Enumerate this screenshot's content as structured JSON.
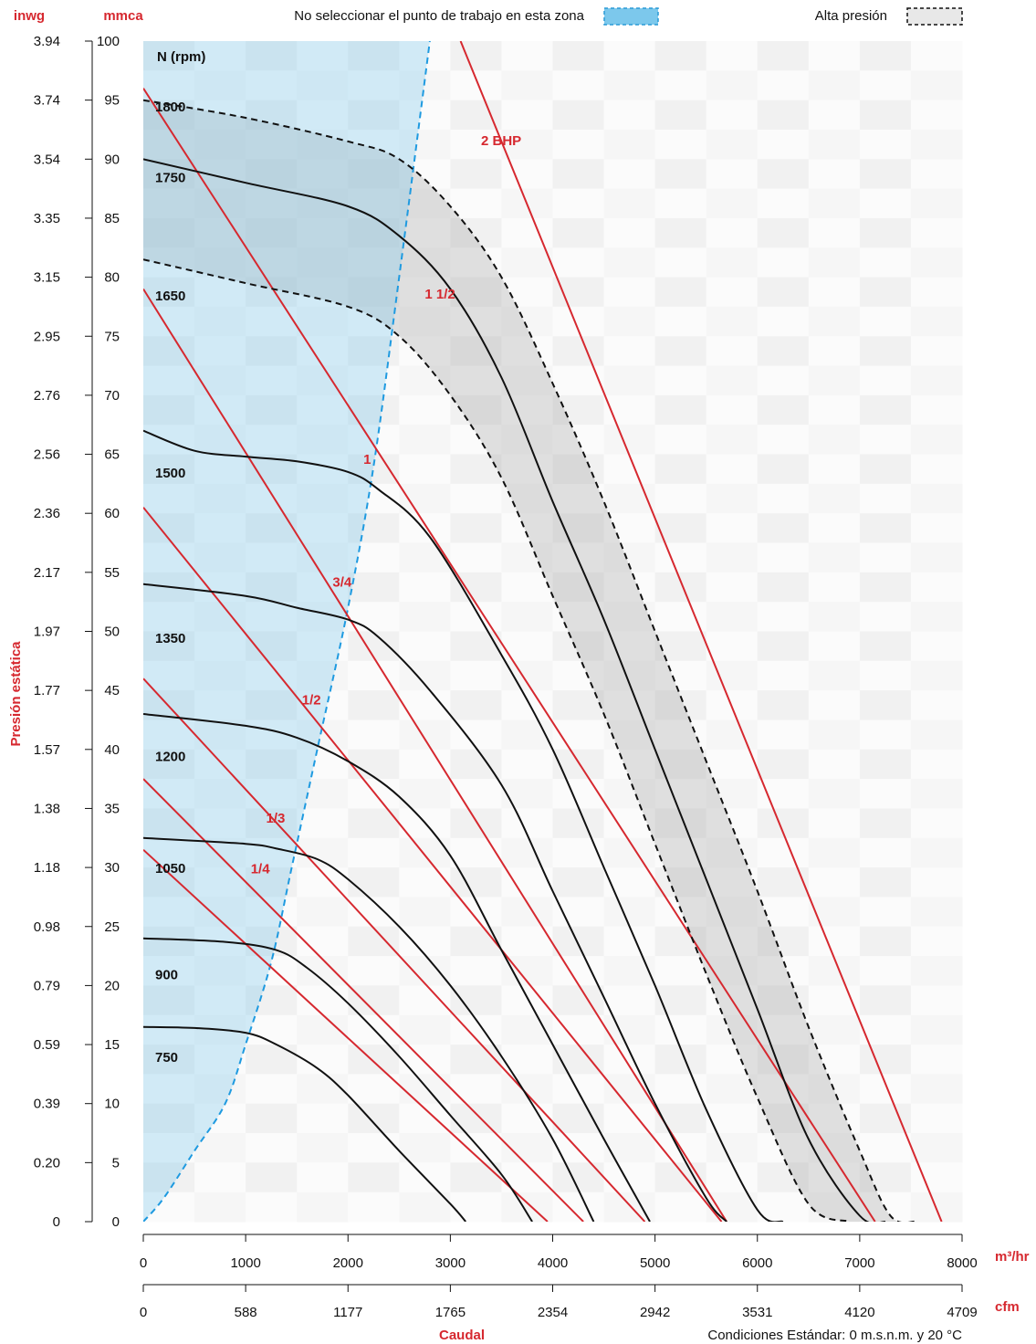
{
  "chart_data": {
    "type": "line",
    "xlabel": "Caudal",
    "ylabel": "Presión estática",
    "x_unit": "m³/hr",
    "x2_unit": "cfm",
    "y_unit": "mmca",
    "y2_unit": "inwg",
    "xlim": [
      0,
      8000
    ],
    "ylim": [
      0,
      100
    ],
    "x_ticks": [
      0,
      1000,
      2000,
      3000,
      4000,
      5000,
      6000,
      7000,
      8000
    ],
    "x2_tick_labels": [
      "0",
      "588",
      "1177",
      "1765",
      "2354",
      "2942",
      "3531",
      "4120",
      "4709"
    ],
    "y_ticks": [
      0,
      5,
      10,
      15,
      20,
      25,
      30,
      35,
      40,
      45,
      50,
      55,
      60,
      65,
      70,
      75,
      80,
      85,
      90,
      95,
      100
    ],
    "y2_tick_labels": [
      "0",
      "0.20",
      "0.39",
      "0.59",
      "0.79",
      "0.98",
      "1.18",
      "1.38",
      "1.57",
      "1.77",
      "1.97",
      "2.17",
      "2.36",
      "2.56",
      "2.76",
      "2.95",
      "3.15",
      "3.35",
      "3.54",
      "3.74",
      "3.94"
    ],
    "rpm_title": "N (rpm)",
    "legend": {
      "avoid_zone": "No seleccionar el punto de trabajo en esta zona",
      "high_pressure": "Alta presión",
      "avoid_color": "#7cc8ec",
      "high_color": "#d0d0d0"
    },
    "footer_note": "Condiciones Estándar: 0 m.s.n.m. y 20 °C",
    "rpm_series": [
      {
        "name": "1800",
        "dashed": true,
        "x": [
          0,
          1000,
          2000,
          2500,
          3000,
          3500,
          4000,
          4500,
          5000,
          5500,
          6000,
          6500,
          7000,
          7300,
          7550
        ],
        "y": [
          95,
          93.5,
          91.5,
          90,
          86,
          80,
          71,
          61,
          50,
          39,
          28,
          16.5,
          6,
          0.5,
          0
        ]
      },
      {
        "name": "1750",
        "x": [
          0,
          1000,
          2000,
          2500,
          3000,
          3500,
          4000,
          4500,
          5000,
          5500,
          6000,
          6500,
          7000,
          7250
        ],
        "y": [
          90,
          88,
          86,
          83.5,
          79,
          71.5,
          61,
          51,
          40,
          29,
          18,
          7,
          0.5,
          0
        ]
      },
      {
        "name": "1650",
        "dashed": true,
        "x": [
          0,
          1000,
          2000,
          2500,
          3000,
          3500,
          4000,
          4500,
          5000,
          5500,
          6000,
          6500,
          6900
        ],
        "y": [
          81.5,
          79.5,
          77.5,
          75,
          70,
          63,
          53,
          43,
          32,
          21,
          10.5,
          1.5,
          0
        ]
      },
      {
        "name": "1500",
        "x": [
          0,
          500,
          1000,
          1500,
          2000,
          2300,
          2800,
          3500,
          4000,
          4500,
          5000,
          5500,
          6000,
          6250
        ],
        "y": [
          67,
          65.3,
          64.8,
          64.4,
          63.5,
          62,
          58,
          48,
          40,
          30,
          20,
          9.5,
          1,
          0
        ]
      },
      {
        "name": "1350",
        "x": [
          0,
          1000,
          1500,
          2000,
          2300,
          2800,
          3500,
          4000,
          4500,
          5000,
          5500,
          5700
        ],
        "y": [
          54,
          53,
          52,
          51,
          49.5,
          45,
          37,
          28,
          19,
          10,
          2,
          0
        ]
      },
      {
        "name": "1200",
        "x": [
          0,
          1000,
          1500,
          2000,
          2500,
          3000,
          3500,
          4000,
          4500,
          4950
        ],
        "y": [
          43,
          42,
          41,
          39,
          36,
          31,
          23,
          15,
          7,
          0
        ]
      },
      {
        "name": "1050",
        "x": [
          0,
          1000,
          1300,
          1700,
          2000,
          2500,
          3000,
          3500,
          4000,
          4400
        ],
        "y": [
          32.5,
          32,
          31.6,
          30.7,
          29,
          25,
          20,
          14,
          7,
          0
        ]
      },
      {
        "name": "900",
        "x": [
          0,
          800,
          1300,
          1600,
          2000,
          2500,
          3000,
          3500,
          3800
        ],
        "y": [
          24,
          23.7,
          23,
          21.5,
          18.5,
          14,
          9,
          4,
          0
        ]
      },
      {
        "name": "750",
        "x": [
          0,
          500,
          1000,
          1300,
          1700,
          2000,
          2500,
          3000,
          3150
        ],
        "y": [
          16.5,
          16.4,
          16,
          15,
          13,
          10.7,
          6,
          1.5,
          0
        ]
      }
    ],
    "rpm_label_y": [
      94.5,
      88.5,
      78.5,
      63.5,
      49.5,
      39.5,
      30,
      21,
      14
    ],
    "bhp_series": [
      {
        "name": "2 BHP",
        "x": [
          3100,
          7800
        ],
        "y": [
          100,
          0
        ]
      },
      {
        "name": "1 1/2",
        "x": [
          0,
          7150
        ],
        "y": [
          96,
          0
        ]
      },
      {
        "name": "1",
        "x": [
          0,
          5700
        ],
        "y": [
          79,
          0
        ]
      },
      {
        "name": "3/4",
        "x": [
          0,
          5650
        ],
        "y": [
          60.5,
          0
        ]
      },
      {
        "name": "1/2",
        "x": [
          0,
          4900
        ],
        "y": [
          46,
          0
        ]
      },
      {
        "name": "1/3",
        "x": [
          0,
          4300
        ],
        "y": [
          37.5,
          0
        ]
      },
      {
        "name": "1/4",
        "x": [
          0,
          3950
        ],
        "y": [
          31.5,
          0
        ]
      }
    ],
    "bhp_label_pos": [
      {
        "x": 3300,
        "y": 91.2
      },
      {
        "x": 2750,
        "y": 78.2
      },
      {
        "x": 2150,
        "y": 64.2
      },
      {
        "x": 1850,
        "y": 53.8
      },
      {
        "x": 1550,
        "y": 43.8
      },
      {
        "x": 1200,
        "y": 33.8
      },
      {
        "x": 1050,
        "y": 29.5
      }
    ],
    "avoid_boundary": {
      "x": [
        0,
        200,
        500,
        800,
        1000,
        1250,
        1450,
        1700,
        2000,
        2250,
        2500,
        2800
      ],
      "y": [
        0,
        2,
        6,
        10,
        15,
        22,
        30,
        40,
        52,
        64,
        80,
        100
      ]
    }
  }
}
